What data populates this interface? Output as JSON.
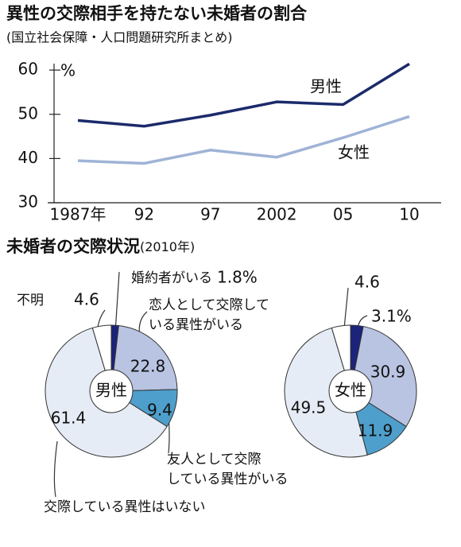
{
  "chart_data": [
    {
      "type": "line",
      "title": "異性の交際相手を持たない未婚者の割合",
      "subtitle": "(国立社会保障・人口問題研究所まとめ)",
      "y_unit": "%",
      "categories": [
        "1987年",
        "92",
        "97",
        "2002",
        "05",
        "10"
      ],
      "series": [
        {
          "name": "男性",
          "color": "#1b2a6b",
          "values": [
            48.6,
            47.3,
            49.8,
            52.8,
            52.2,
            61.4
          ]
        },
        {
          "name": "女性",
          "color": "#9fb3d6",
          "values": [
            39.5,
            38.9,
            41.9,
            40.3,
            44.7,
            49.5
          ]
        }
      ],
      "ylim": [
        30,
        62
      ],
      "yticks": [
        30,
        40,
        50,
        60
      ]
    },
    {
      "type": "donut",
      "title": "未婚者の交際状況",
      "subtitle": "(2010年)",
      "categories": [
        "婚約者がいる",
        [
          "恋人として交際して",
          "いる異性がいる"
        ],
        [
          "友人として交際",
          "している異性がいる"
        ],
        "交際している異性はいない",
        "不明"
      ],
      "colors": [
        "#1b237a",
        "#b9c4e2",
        "#4e9fcb",
        "#e6ecf5",
        "#ffffff"
      ],
      "pies": [
        {
          "name": "男性",
          "values": [
            1.8,
            22.8,
            9.4,
            61.4,
            4.6
          ],
          "value_labels": [
            "1.8%",
            "22.8",
            "9.4",
            "61.4",
            "4.6"
          ]
        },
        {
          "name": "女性",
          "values": [
            3.1,
            30.9,
            11.9,
            49.5,
            4.6
          ],
          "value_labels": [
            "3.1%",
            "30.9",
            "11.9",
            "49.5",
            "4.6"
          ]
        }
      ]
    }
  ]
}
